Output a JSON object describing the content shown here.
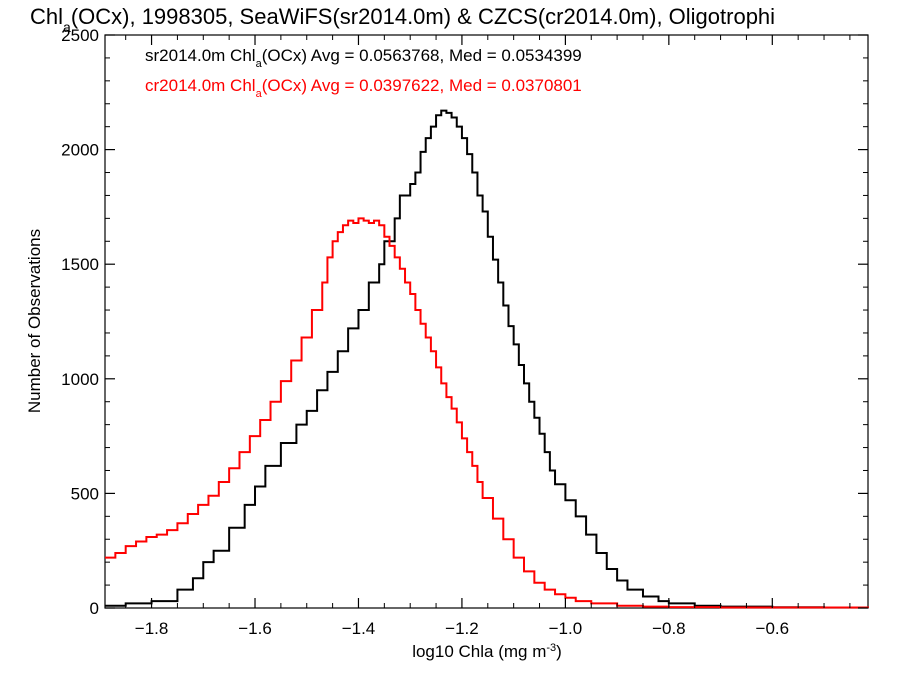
{
  "chart_data": {
    "type": "line",
    "title_prefix": "Chl",
    "title_sub": "a",
    "title_rest": "(OCx), 1998305, SeaWiFS(sr2014.0m) & CZCS(cr2014.0m), Oligotrophi",
    "xlabel_text": "log10 Chla (mg m",
    "xlabel_sup": "-3",
    "xlabel_close": ")",
    "ylabel": "Number of Observations",
    "xlim": [
      -1.89,
      -0.415
    ],
    "ylim": [
      0,
      2500
    ],
    "xticks": [
      -1.8,
      -1.6,
      -1.4,
      -1.2,
      -1.0,
      -0.8,
      -0.6
    ],
    "xtick_labels": [
      "−1.8",
      "−1.6",
      "−1.4",
      "−1.2",
      "−1.0",
      "−0.8",
      "−0.6"
    ],
    "yticks": [
      0,
      500,
      1000,
      1500,
      2000,
      2500
    ],
    "ytick_labels": [
      "0",
      "500",
      "1000",
      "1500",
      "2000",
      "2500"
    ],
    "grid": false,
    "stat_lines": [
      {
        "prefix": "sr2014.0m Chl",
        "sub": "a",
        "rest": "(OCx) Avg = 0.0563768, Med = 0.0534399",
        "color": "#000000"
      },
      {
        "prefix": "cr2014.0m Chl",
        "sub": "a",
        "rest": "(OCx) Avg = 0.0397622, Med = 0.0370801",
        "color": "#ff0000"
      }
    ],
    "series": [
      {
        "color": "#000000",
        "points": [
          [
            -1.89,
            10
          ],
          [
            -1.85,
            20
          ],
          [
            -1.8,
            30
          ],
          [
            -1.75,
            80
          ],
          [
            -1.72,
            130
          ],
          [
            -1.7,
            200
          ],
          [
            -1.68,
            250
          ],
          [
            -1.65,
            350
          ],
          [
            -1.62,
            450
          ],
          [
            -1.6,
            530
          ],
          [
            -1.58,
            620
          ],
          [
            -1.55,
            720
          ],
          [
            -1.52,
            800
          ],
          [
            -1.5,
            860
          ],
          [
            -1.48,
            950
          ],
          [
            -1.46,
            1030
          ],
          [
            -1.44,
            1120
          ],
          [
            -1.42,
            1220
          ],
          [
            -1.4,
            1300
          ],
          [
            -1.38,
            1420
          ],
          [
            -1.36,
            1500
          ],
          [
            -1.35,
            1600
          ],
          [
            -1.33,
            1700
          ],
          [
            -1.32,
            1800
          ],
          [
            -1.3,
            1850
          ],
          [
            -1.29,
            1900
          ],
          [
            -1.28,
            1990
          ],
          [
            -1.27,
            2050
          ],
          [
            -1.26,
            2100
          ],
          [
            -1.25,
            2150
          ],
          [
            -1.24,
            2170
          ],
          [
            -1.23,
            2160
          ],
          [
            -1.22,
            2140
          ],
          [
            -1.21,
            2100
          ],
          [
            -1.2,
            2050
          ],
          [
            -1.19,
            1980
          ],
          [
            -1.18,
            1900
          ],
          [
            -1.17,
            1800
          ],
          [
            -1.16,
            1730
          ],
          [
            -1.15,
            1620
          ],
          [
            -1.14,
            1520
          ],
          [
            -1.13,
            1420
          ],
          [
            -1.12,
            1320
          ],
          [
            -1.11,
            1230
          ],
          [
            -1.1,
            1150
          ],
          [
            -1.09,
            1060
          ],
          [
            -1.08,
            980
          ],
          [
            -1.07,
            900
          ],
          [
            -1.06,
            830
          ],
          [
            -1.05,
            760
          ],
          [
            -1.04,
            680
          ],
          [
            -1.03,
            600
          ],
          [
            -1.02,
            540
          ],
          [
            -1.0,
            470
          ],
          [
            -0.98,
            400
          ],
          [
            -0.96,
            320
          ],
          [
            -0.94,
            240
          ],
          [
            -0.92,
            170
          ],
          [
            -0.9,
            120
          ],
          [
            -0.88,
            80
          ],
          [
            -0.85,
            50
          ],
          [
            -0.82,
            30
          ],
          [
            -0.8,
            20
          ],
          [
            -0.75,
            10
          ],
          [
            -0.7,
            6
          ],
          [
            -0.6,
            3
          ],
          [
            -0.5,
            2
          ],
          [
            -0.415,
            1
          ]
        ]
      },
      {
        "color": "#ff0000",
        "points": [
          [
            -1.89,
            220
          ],
          [
            -1.87,
            240
          ],
          [
            -1.85,
            270
          ],
          [
            -1.83,
            290
          ],
          [
            -1.81,
            310
          ],
          [
            -1.79,
            320
          ],
          [
            -1.77,
            340
          ],
          [
            -1.75,
            370
          ],
          [
            -1.73,
            410
          ],
          [
            -1.71,
            450
          ],
          [
            -1.69,
            490
          ],
          [
            -1.67,
            550
          ],
          [
            -1.65,
            610
          ],
          [
            -1.63,
            680
          ],
          [
            -1.61,
            750
          ],
          [
            -1.59,
            820
          ],
          [
            -1.57,
            900
          ],
          [
            -1.55,
            990
          ],
          [
            -1.53,
            1080
          ],
          [
            -1.51,
            1180
          ],
          [
            -1.49,
            1300
          ],
          [
            -1.47,
            1420
          ],
          [
            -1.46,
            1530
          ],
          [
            -1.45,
            1600
          ],
          [
            -1.44,
            1640
          ],
          [
            -1.43,
            1670
          ],
          [
            -1.42,
            1690
          ],
          [
            -1.41,
            1680
          ],
          [
            -1.4,
            1700
          ],
          [
            -1.39,
            1690
          ],
          [
            -1.38,
            1680
          ],
          [
            -1.37,
            1690
          ],
          [
            -1.36,
            1670
          ],
          [
            -1.35,
            1620
          ],
          [
            -1.34,
            1580
          ],
          [
            -1.33,
            1530
          ],
          [
            -1.32,
            1480
          ],
          [
            -1.31,
            1420
          ],
          [
            -1.3,
            1370
          ],
          [
            -1.29,
            1300
          ],
          [
            -1.28,
            1240
          ],
          [
            -1.27,
            1180
          ],
          [
            -1.26,
            1120
          ],
          [
            -1.25,
            1050
          ],
          [
            -1.24,
            980
          ],
          [
            -1.23,
            920
          ],
          [
            -1.22,
            870
          ],
          [
            -1.21,
            810
          ],
          [
            -1.2,
            740
          ],
          [
            -1.19,
            680
          ],
          [
            -1.18,
            620
          ],
          [
            -1.17,
            550
          ],
          [
            -1.16,
            480
          ],
          [
            -1.14,
            390
          ],
          [
            -1.12,
            300
          ],
          [
            -1.1,
            220
          ],
          [
            -1.08,
            160
          ],
          [
            -1.06,
            110
          ],
          [
            -1.04,
            80
          ],
          [
            -1.02,
            60
          ],
          [
            -1.0,
            45
          ],
          [
            -0.98,
            30
          ],
          [
            -0.95,
            20
          ],
          [
            -0.9,
            10
          ],
          [
            -0.85,
            6
          ],
          [
            -0.8,
            4
          ],
          [
            -0.7,
            2
          ],
          [
            -0.415,
            1
          ]
        ]
      }
    ]
  }
}
